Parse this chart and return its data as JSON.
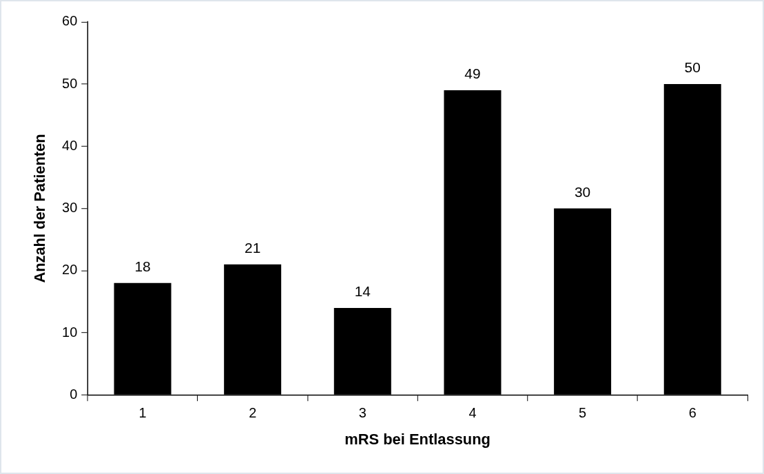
{
  "chart_data": {
    "type": "bar",
    "xlabel": "mRS bei Entlassung",
    "ylabel": "Anzahl der Patienten",
    "categories": [
      "1",
      "2",
      "3",
      "4",
      "5",
      "6"
    ],
    "values": [
      18,
      21,
      14,
      49,
      30,
      50
    ],
    "color": "#000000",
    "ylim": [
      0,
      60
    ],
    "yticks": [
      0,
      10,
      20,
      30,
      40,
      50,
      60
    ],
    "grid": false,
    "legend": false,
    "data_labels": true
  }
}
